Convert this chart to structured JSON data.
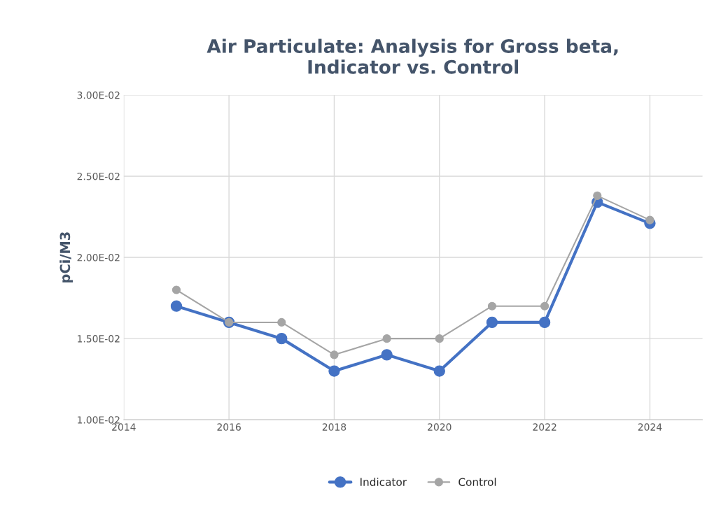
{
  "chart_data": {
    "type": "line",
    "title": "Air Particulate: Analysis for Gross beta,\nIndicator vs. Control",
    "ylabel": "pCi/M3",
    "x": [
      2015,
      2016,
      2017,
      2018,
      2019,
      2020,
      2021,
      2022,
      2023,
      2024
    ],
    "series": [
      {
        "name": "Indicator",
        "color": "#4472c4",
        "values": [
          0.017,
          0.016,
          0.015,
          0.013,
          0.014,
          0.013,
          0.016,
          0.016,
          0.0234,
          0.0221
        ]
      },
      {
        "name": "Control",
        "color": "#a5a5a5",
        "values": [
          0.018,
          0.016,
          0.016,
          0.014,
          0.015,
          0.015,
          0.017,
          0.017,
          0.0238,
          0.0223
        ]
      }
    ],
    "xlim": [
      2014,
      2025
    ],
    "xticks": [
      2014,
      2016,
      2018,
      2020,
      2022,
      2024
    ],
    "ylim": [
      0.01,
      0.03
    ],
    "yticks": [
      {
        "value": 0.01,
        "label": "1.00E-02"
      },
      {
        "value": 0.015,
        "label": "1.50E-02"
      },
      {
        "value": 0.02,
        "label": "2.00E-02"
      },
      {
        "value": 0.025,
        "label": "2.50E-02"
      },
      {
        "value": 0.03,
        "label": "3.00E-02"
      }
    ],
    "grid": true,
    "legend": "bottom",
    "marker": "circle",
    "line_style": "solid"
  }
}
